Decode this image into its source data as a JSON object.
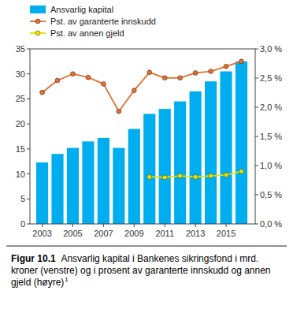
{
  "chart_data": {
    "type": "bar",
    "title": "Figur 10.1",
    "subtitle": "Ansvarlig kapital i Bankenes sikringsfond i mrd. kroner (venstre) og i prosent av garanterte innskudd og annen gjeld (høyre)",
    "annotations": [
      "1"
    ],
    "x": [
      2003,
      2004,
      2005,
      2006,
      2007,
      2008,
      2009,
      2010,
      2011,
      2012,
      2013,
      2014,
      2015,
      2016
    ],
    "series": [
      {
        "name": "Ansvarlig kapital",
        "type": "bar",
        "color": "#00AEEF",
        "values": [
          12.3,
          14.0,
          15.2,
          16.5,
          17.2,
          15.2,
          19.0,
          22.0,
          23.0,
          24.5,
          26.5,
          28.5,
          30.5,
          32.5
        ]
      },
      {
        "name": "Pst. av garanterte innskudd",
        "type": "line",
        "marker": "circle",
        "color": "#E07030",
        "axis": "y2",
        "values": [
          2.254285714285714,
          2.46,
          2.571428571428571,
          2.511428571428571,
          2.4,
          1.9285714285714286,
          2.288571428571429,
          2.597142857142857,
          2.502857142857143,
          2.502857142857143,
          2.588571428571429,
          2.614285714285714,
          2.7,
          2.785714285714286
        ]
      },
      {
        "name": "Pst. av annen gjeld",
        "type": "line",
        "marker": "circle",
        "color": "#E8E000",
        "axis": "y2",
        "values": [
          null,
          null,
          null,
          null,
          null,
          null,
          null,
          0.8057142857142857,
          0.7971428571428572,
          0.822857142857143,
          0.8057142857142857,
          0.822857142857143,
          0.84,
          0.9
        ]
      }
    ],
    "xlim": [
      2002.2,
      2016.9
    ],
    "xticks": [
      2003,
      2005,
      2007,
      2009,
      2011,
      2013,
      2015
    ],
    "ylim": [
      0,
      35
    ],
    "yticks": [
      0,
      5,
      10,
      15,
      20,
      25,
      30,
      35
    ],
    "y2lim": [
      0.0,
      3.0
    ],
    "y2ticks": [
      {
        "value": 0.0,
        "label": "0,0 %"
      },
      {
        "value": 0.5,
        "label": "0,5 %"
      },
      {
        "value": 1.0,
        "label": "1,0 %"
      },
      {
        "value": 1.5,
        "label": "1,5 %"
      },
      {
        "value": 2.0,
        "label": "2,0 %"
      },
      {
        "value": 2.5,
        "label": "2,5 %"
      },
      {
        "value": 3.0,
        "label": "3,0 %"
      }
    ],
    "grid": false,
    "legend": "upper left"
  }
}
